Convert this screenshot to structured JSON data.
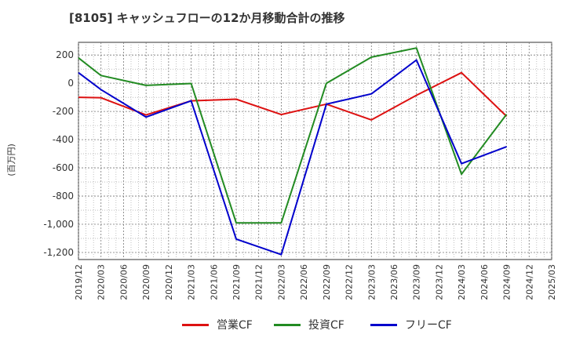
{
  "title": "[8105]  キャッシュフローの12か月移動合計の推移",
  "chart_data": {
    "type": "line",
    "title": "[8105]  キャッシュフローの12か月移動合計の推移",
    "ylabel": "(百万円)",
    "xlabel": "",
    "ylim": [
      -1250,
      290
    ],
    "yticks": [
      200,
      0,
      -200,
      -400,
      -600,
      -800,
      -1000,
      -1200
    ],
    "ytick_labels": [
      "200",
      "0",
      "-200",
      "-400",
      "-600",
      "-800",
      "-1,000",
      "-1,200"
    ],
    "xticks": [
      "2019/12",
      "2020/03",
      "2020/06",
      "2020/09",
      "2020/12",
      "2021/03",
      "2021/06",
      "2021/09",
      "2021/12",
      "2022/03",
      "2022/06",
      "2022/09",
      "2022/12",
      "2023/03",
      "2023/06",
      "2023/09",
      "2023/12",
      "2024/03",
      "2024/06",
      "2024/09",
      "2024/12",
      "2025/03"
    ],
    "grid": true,
    "legend": "bottom",
    "series": [
      {
        "name": "営業CF",
        "color": "#dd1111",
        "points": [
          [
            "2019/12",
            -100
          ],
          [
            "2020/03",
            -103
          ],
          [
            "2020/09",
            -225
          ],
          [
            "2021/03",
            -125
          ],
          [
            "2021/09",
            -113
          ],
          [
            "2022/03",
            -222
          ],
          [
            "2022/09",
            -148
          ],
          [
            "2023/03",
            -260
          ],
          [
            "2023/09",
            -85
          ],
          [
            "2024/03",
            75
          ],
          [
            "2024/09",
            -235
          ]
        ]
      },
      {
        "name": "投資CF",
        "color": "#228b22",
        "points": [
          [
            "2019/12",
            180
          ],
          [
            "2020/03",
            55
          ],
          [
            "2020/09",
            -15
          ],
          [
            "2021/03",
            -2
          ],
          [
            "2021/09",
            -990
          ],
          [
            "2022/03",
            -990
          ],
          [
            "2022/09",
            0
          ],
          [
            "2023/03",
            185
          ],
          [
            "2023/09",
            250
          ],
          [
            "2024/03",
            -645
          ],
          [
            "2024/09",
            -220
          ]
        ]
      },
      {
        "name": "フリーCF",
        "color": "#0000cc",
        "points": [
          [
            "2019/12",
            75
          ],
          [
            "2020/03",
            -45
          ],
          [
            "2020/09",
            -240
          ],
          [
            "2021/03",
            -125
          ],
          [
            "2021/09",
            -1105
          ],
          [
            "2022/03",
            -1215
          ],
          [
            "2022/09",
            -148
          ],
          [
            "2023/03",
            -75
          ],
          [
            "2023/09",
            165
          ],
          [
            "2024/03",
            -570
          ],
          [
            "2024/09",
            -450
          ]
        ]
      }
    ]
  }
}
